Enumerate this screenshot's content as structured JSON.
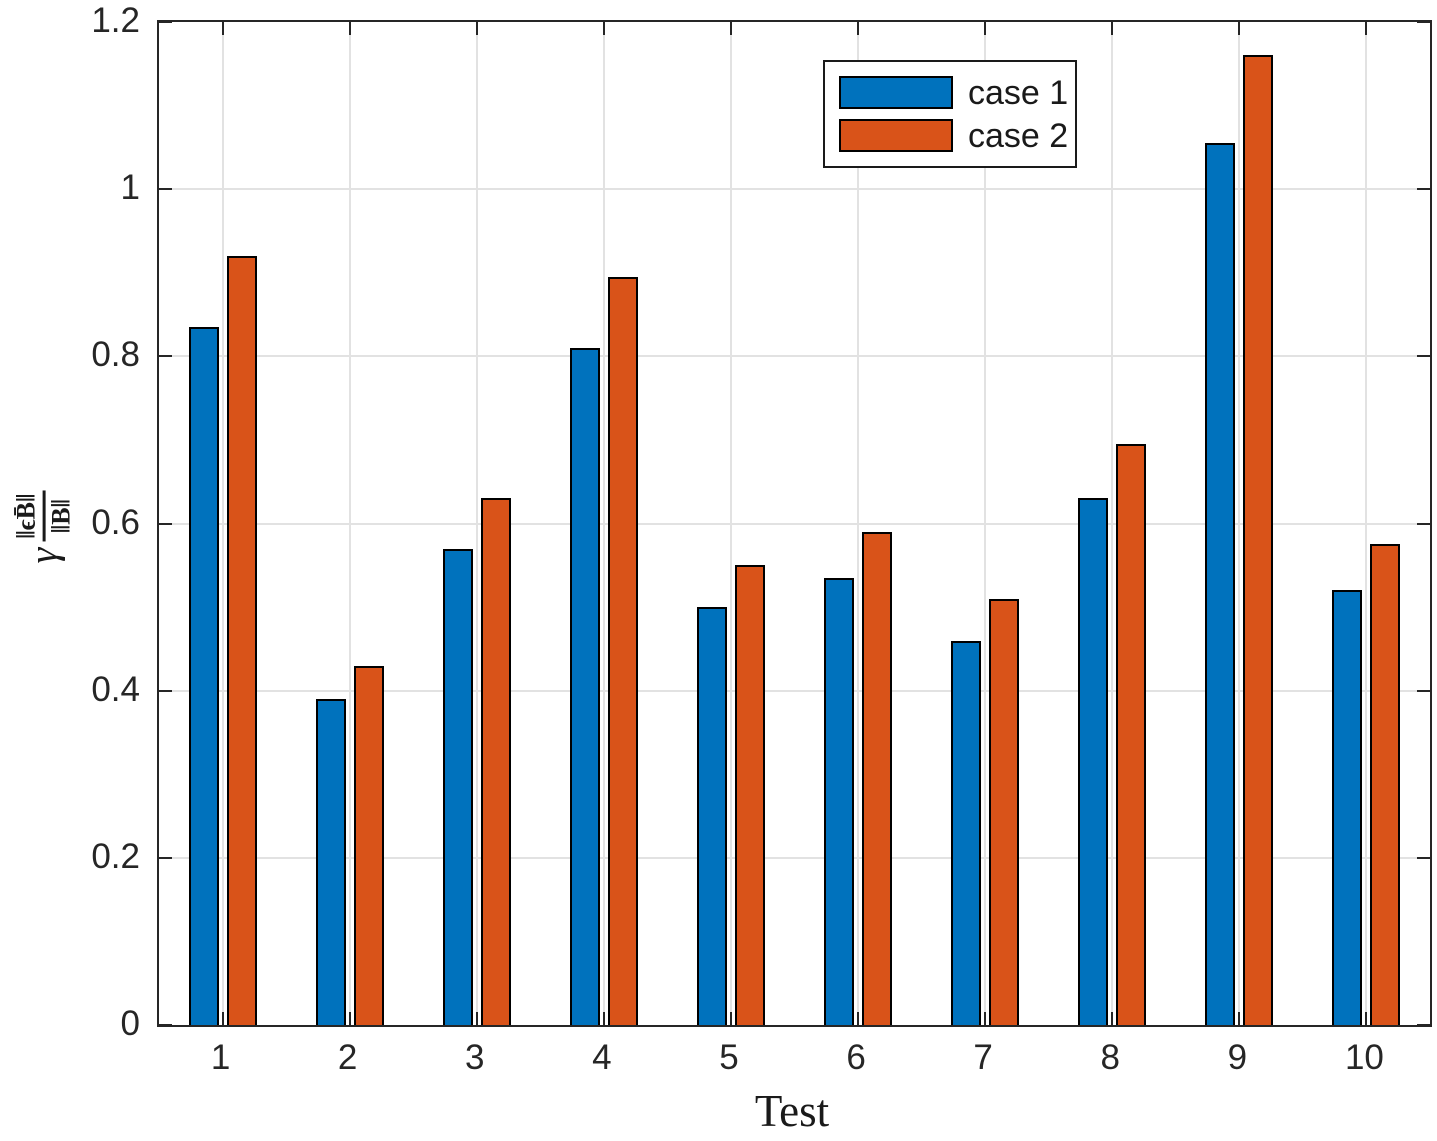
{
  "chart_data": {
    "type": "bar",
    "title": "",
    "xlabel": "Test",
    "ylabel": {
      "gamma": "γ",
      "numerator": "‖ϵB̄‖",
      "denominator": "‖B‖"
    },
    "categories": [
      "1",
      "2",
      "3",
      "4",
      "5",
      "6",
      "7",
      "8",
      "9",
      "10"
    ],
    "series": [
      {
        "name": "case 1",
        "color": "#0072BD",
        "values": [
          0.835,
          0.39,
          0.57,
          0.81,
          0.5,
          0.535,
          0.46,
          0.63,
          1.055,
          0.52
        ]
      },
      {
        "name": "case 2",
        "color": "#D95319",
        "values": [
          0.92,
          0.43,
          0.63,
          0.895,
          0.55,
          0.59,
          0.51,
          0.695,
          1.16,
          0.575
        ]
      }
    ],
    "ylim": [
      0,
      1.2
    ],
    "yticks": [
      0,
      0.2,
      0.4,
      0.6,
      0.8,
      1,
      1.2
    ],
    "ytick_labels": [
      "0",
      "0.2",
      "0.4",
      "0.6",
      "0.8",
      "1",
      "1.2"
    ],
    "grid": true,
    "legend_position": "inside-top-center",
    "bar_edge_color": "#000000",
    "axis_color": "#262626",
    "grid_color": "#e2e2e2",
    "background_color": "#ffffff"
  }
}
